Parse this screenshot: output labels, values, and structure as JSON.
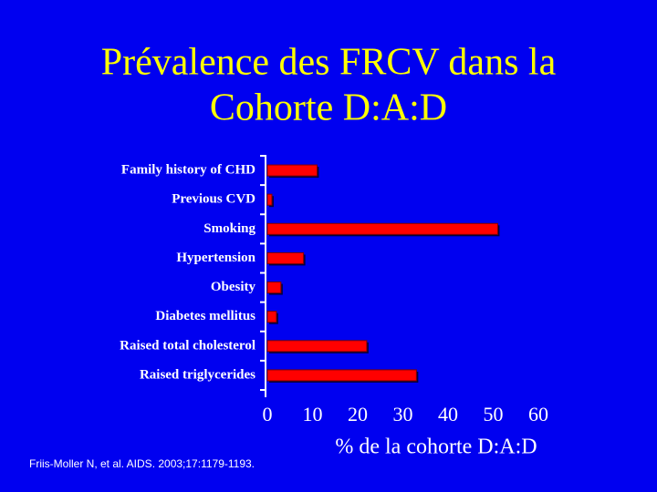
{
  "chart_data": {
    "type": "bar",
    "orientation": "horizontal",
    "title": [
      "Prévalence des FRCV dans la",
      "Cohorte D:A:D"
    ],
    "categories": [
      "Family history of CHD",
      "Previous CVD",
      "Smoking",
      "Hypertension",
      "Obesity",
      "Diabetes mellitus",
      "Raised total cholesterol",
      "Raised triglycerides"
    ],
    "values": [
      11,
      1,
      51,
      8,
      3,
      2,
      22,
      33
    ],
    "color": "#ff0000",
    "xlim": [
      0,
      60
    ],
    "xticks": [
      0,
      10,
      20,
      30,
      40,
      50,
      60
    ],
    "xlabel": "% de la cohorte D:A:D",
    "source": "Friis-Moller N, et al. AIDS. 2003;17:1179-1193."
  }
}
